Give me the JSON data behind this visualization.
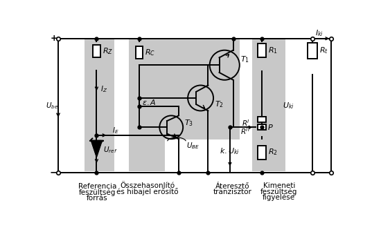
{
  "bg_color": "#ffffff",
  "gray_color": "#c8c8c8",
  "line_color": "#000000",
  "labels": {
    "ref_label1": "Referencia",
    "ref_label2": "feszültség",
    "ref_label3": "forrás",
    "comp_label1": "Összehasonlító",
    "comp_label2": "és hibajel erősítő",
    "pass_label1": "Áteresztő",
    "pass_label2": "tranzisztor",
    "out_label1": "Kimeneti",
    "out_label2": "feszültség",
    "out_label3": "figyelése"
  }
}
